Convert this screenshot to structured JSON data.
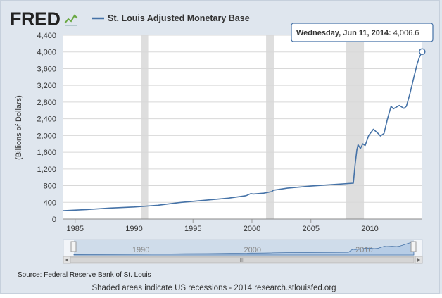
{
  "branding": {
    "logo_text": "FRED",
    "logo_graph_icon": "small-line-chart-icon"
  },
  "colors": {
    "background": "#dfe6ee",
    "panel_border": "#c6d0dc",
    "series": "#4572a7",
    "recession": "#dedede",
    "logo": "#222222",
    "logo_accent": "#6aa843",
    "navigator_fill": "#b7cde6",
    "navigator_mask": "#cfdcea",
    "tooltip_border": "#4572a7",
    "axis_text": "#333333",
    "source_text": "#222222"
  },
  "chart_data": {
    "type": "line",
    "title": "",
    "legend": {
      "entries": [
        "St. Louis Adjusted Monetary Base"
      ],
      "placement": "top-left"
    },
    "xlabel": "",
    "ylabel": "(Billions of Dollars)",
    "xlim": [
      1984.0,
      2014.45
    ],
    "ylim": [
      0,
      4400
    ],
    "yticks": [
      0,
      400,
      800,
      1200,
      1600,
      2000,
      2400,
      2800,
      3200,
      3600,
      4000,
      4400
    ],
    "ytick_labels": [
      "0",
      "400",
      "800",
      "1,200",
      "1,600",
      "2,000",
      "2,400",
      "2,800",
      "3,200",
      "3,600",
      "4,000",
      "4,400"
    ],
    "xticks": [
      1985,
      1990,
      1995,
      2000,
      2005,
      2010
    ],
    "xtick_labels": [
      "1985",
      "1990",
      "1995",
      "2000",
      "2005",
      "2010"
    ],
    "grid": {
      "horizontal": true,
      "vertical": false
    },
    "recessions": [
      [
        1990.6,
        1991.2
      ],
      [
        2001.2,
        2001.9
      ],
      [
        2007.95,
        2009.5
      ]
    ],
    "series": [
      {
        "name": "St. Louis Adjusted Monetary Base",
        "x": [
          1984.0,
          1986.0,
          1988.0,
          1990.0,
          1992.0,
          1994.0,
          1996.0,
          1998.0,
          1999.5,
          1999.9,
          2000.1,
          2001.0,
          2001.7,
          2001.8,
          2003.0,
          2005.0,
          2007.0,
          2008.6,
          2008.75,
          2008.9,
          2009.0,
          2009.2,
          2009.4,
          2009.6,
          2009.9,
          2010.3,
          2010.7,
          2010.9,
          2011.2,
          2011.5,
          2011.8,
          2012.0,
          2012.5,
          2012.9,
          2013.1,
          2013.4,
          2013.7,
          2014.0,
          2014.2,
          2014.44
        ],
        "values": [
          200,
          230,
          265,
          290,
          330,
          400,
          450,
          500,
          560,
          610,
          600,
          620,
          660,
          690,
          740,
          790,
          830,
          860,
          1300,
          1650,
          1780,
          1690,
          1800,
          1760,
          2000,
          2150,
          2050,
          1990,
          2050,
          2400,
          2700,
          2640,
          2720,
          2650,
          2700,
          3000,
          3350,
          3700,
          3870,
          4006.6
        ]
      }
    ],
    "tooltip": {
      "date": "Wednesday, Jun 11, 2014:",
      "value": "4,006.6"
    },
    "navigator": {
      "labels": [
        "1990",
        "2000",
        "2010"
      ],
      "scroll_handle": "III"
    }
  },
  "footer": {
    "source": "Source: Federal Reserve Bank of St. Louis",
    "note": "Shaded areas indicate US recessions - 2014 research.stlouisfed.org"
  }
}
